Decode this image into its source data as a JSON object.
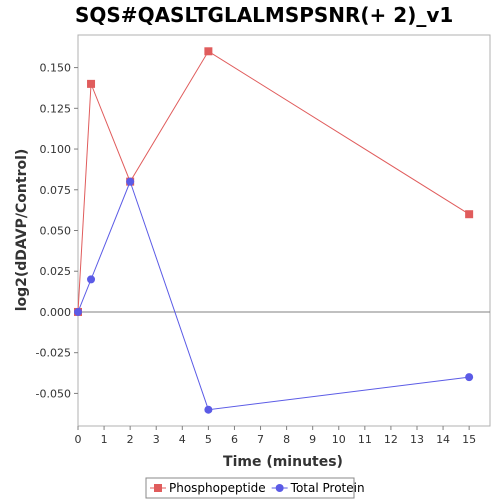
{
  "chart_data": {
    "type": "line",
    "title": "SQS#QASLTGLALMSPSNR(+ 2)_v1",
    "xlabel": "Time (minutes)",
    "ylabel": "log2(dDAVP/Control)",
    "xlim": [
      0,
      15.8
    ],
    "ylim": [
      -0.07,
      0.17
    ],
    "xticks": [
      0,
      1,
      2,
      3,
      4,
      5,
      6,
      7,
      8,
      9,
      10,
      11,
      12,
      13,
      14,
      15
    ],
    "yticks": [
      -0.05,
      -0.025,
      0.0,
      0.025,
      0.05,
      0.075,
      0.1,
      0.125,
      0.15
    ],
    "ytick_labels": [
      "-0.050",
      "-0.025",
      "0.000",
      "0.025",
      "0.050",
      "0.075",
      "0.100",
      "0.125",
      "0.150"
    ],
    "grid": false,
    "zero_line": true,
    "legend_position": "bottom-center",
    "series": [
      {
        "name": "Phosphopeptide",
        "color": "#e05c5c",
        "marker": "square",
        "points": [
          {
            "x": 0,
            "y": 0.0
          },
          {
            "x": 0.5,
            "y": 0.14
          },
          {
            "x": 2,
            "y": 0.08
          },
          {
            "x": 5,
            "y": 0.16
          },
          {
            "x": 15,
            "y": 0.06
          }
        ]
      },
      {
        "name": "Total Protein",
        "color": "#5b5be6",
        "marker": "circle",
        "points": [
          {
            "x": 0,
            "y": 0.0
          },
          {
            "x": 0.5,
            "y": 0.02
          },
          {
            "x": 2,
            "y": 0.08
          },
          {
            "x": 5,
            "y": -0.06
          },
          {
            "x": 15,
            "y": -0.04
          }
        ]
      }
    ]
  }
}
